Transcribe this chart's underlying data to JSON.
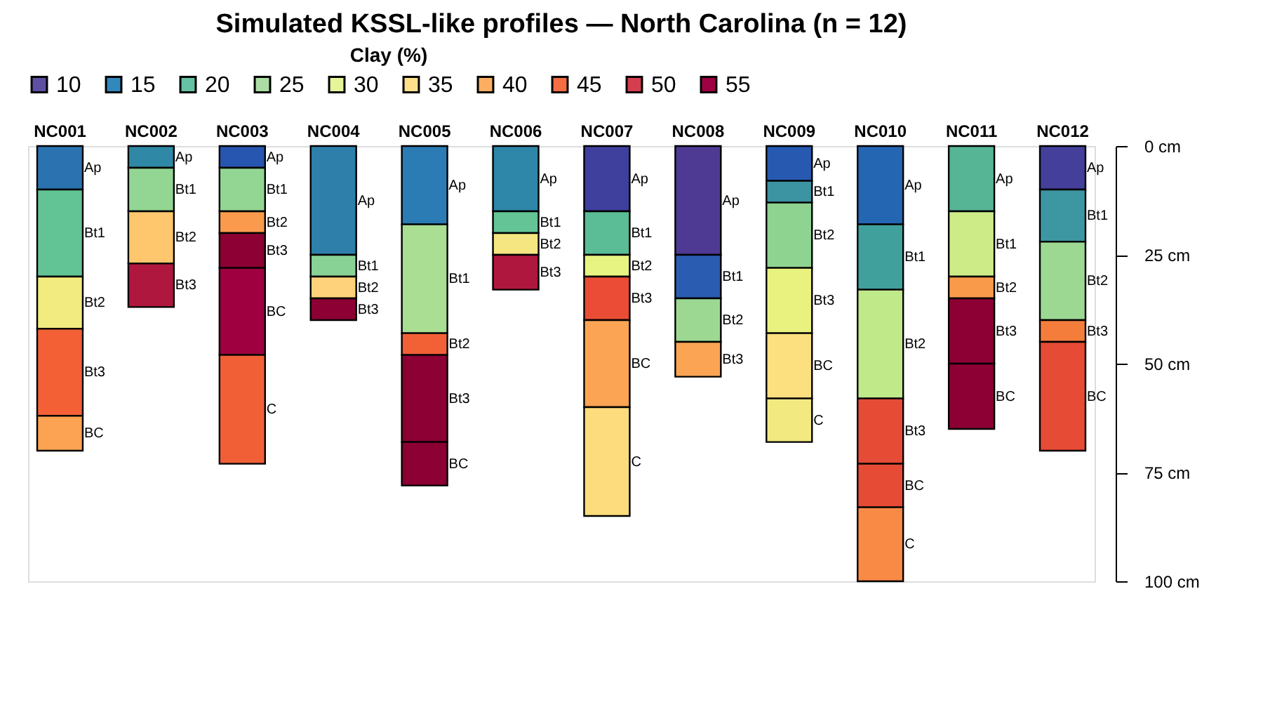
{
  "chart_data": {
    "type": "bar",
    "stacked": true,
    "title": "Simulated KSSL-like profiles — North Carolina (n = 12)",
    "legend_title": "Clay (%)",
    "legend": "top",
    "categories": [
      "NC001",
      "NC002",
      "NC003",
      "NC004",
      "NC005",
      "NC006",
      "NC007",
      "NC008",
      "NC009",
      "NC010",
      "NC011",
      "NC012"
    ],
    "ylim": [
      100,
      0
    ],
    "yticks": [
      {
        "value": 0,
        "label": "0 cm"
      },
      {
        "value": 25,
        "label": "25 cm"
      },
      {
        "value": 50,
        "label": "50 cm"
      },
      {
        "value": 75,
        "label": "75 cm"
      },
      {
        "value": 100,
        "label": "100 cm"
      }
    ],
    "series": [
      {
        "values": [
          10,
          5,
          5,
          25,
          18,
          15,
          15,
          25,
          8,
          18,
          15,
          10
        ],
        "value_labels": [
          "Ap",
          "Ap",
          "Ap",
          "Ap",
          "Ap",
          "Ap",
          "Ap",
          "Ap",
          "Ap",
          "Ap",
          "Ap",
          "Ap"
        ],
        "colors": [
          "#2b73b0",
          "#2f88a6",
          "#2756b0",
          "#2e80ab",
          "#2b7bb5",
          "#2e86a8",
          "#3f3f9e",
          "#4e3a93",
          "#2759b0",
          "#2566b2",
          "#55b595",
          "#433f9b"
        ]
      },
      {
        "values": [
          20,
          10,
          10,
          5,
          25,
          5,
          10,
          10,
          5,
          15,
          15,
          12
        ],
        "value_labels": [
          "Bt1",
          "Bt1",
          "Bt1",
          "Bt1",
          "Bt1",
          "Bt1",
          "Bt1",
          "Bt1",
          "Bt1",
          "Bt1",
          "Bt1",
          "Bt1"
        ],
        "colors": [
          "#62c495",
          "#93d592",
          "#93d592",
          "#88d296",
          "#a9de93",
          "#64c495",
          "#5abd96",
          "#2a5db1",
          "#3c93a2",
          "#40a19c",
          "#cdec88",
          "#3c97a2"
        ]
      },
      {
        "values": [
          12,
          12,
          5,
          5,
          5,
          5,
          5,
          10,
          15,
          25,
          5,
          18
        ],
        "value_labels": [
          "Bt2",
          "Bt2",
          "Bt2",
          "Bt2",
          "Bt2",
          "Bt2",
          "Bt2",
          "Bt2",
          "Bt2",
          "Bt2",
          "Bt2",
          "Bt2"
        ],
        "colors": [
          "#f2ec80",
          "#fec76e",
          "#fa9a4c",
          "#fed27a",
          "#f26036",
          "#f6e681",
          "#e8f482",
          "#9dd893",
          "#8fd390",
          "#c0e98a",
          "#f99a4b",
          "#9dd893"
        ]
      },
      {
        "values": [
          20,
          10,
          8,
          5,
          20,
          8,
          10,
          8,
          15,
          15,
          15,
          5
        ],
        "value_labels": [
          "Bt3",
          "Bt3",
          "Bt3",
          "Bt3",
          "Bt3",
          "Bt3",
          "Bt3",
          "Bt3",
          "Bt3",
          "Bt3",
          "Bt3",
          "Bt3"
        ],
        "colors": [
          "#f46036",
          "#b0173e",
          "#8c0033",
          "#8c0033",
          "#8c0033",
          "#b0173e",
          "#ea4c35",
          "#fba554",
          "#e9f27e",
          "#e64b35",
          "#8c0033",
          "#f57d3c"
        ]
      },
      {
        "values": [
          8,
          null,
          20,
          null,
          10,
          null,
          20,
          null,
          15,
          10,
          15,
          25
        ],
        "value_labels": [
          "BC",
          null,
          "BC",
          null,
          "BC",
          null,
          "BC",
          null,
          "BC",
          "BC",
          "BC",
          "BC"
        ],
        "colors": [
          "#fba352",
          null,
          "#9e0040",
          null,
          "#8c0033",
          null,
          "#fba554",
          null,
          "#fcdf7e",
          "#e64b35",
          "#8c0033",
          "#e64b35"
        ]
      },
      {
        "values": [
          null,
          null,
          25,
          null,
          null,
          null,
          25,
          null,
          10,
          17,
          null,
          null
        ],
        "value_labels": [
          null,
          null,
          "C",
          null,
          null,
          null,
          "C",
          null,
          "C",
          "C",
          null,
          null
        ],
        "colors": [
          null,
          null,
          "#f15f37",
          null,
          null,
          null,
          "#fcdc7c",
          null,
          "#f2ea80",
          "#f98a45",
          null,
          null
        ]
      },
      {
        "name": "10",
        "color": "#5e4fa2",
        "values": [
          null,
          null,
          null,
          null,
          null,
          null,
          null,
          null,
          null,
          null,
          null,
          null
        ]
      },
      {
        "name": "15",
        "color": "#3288bd",
        "values": [
          null,
          null,
          null,
          null,
          null,
          null,
          null,
          null,
          null,
          null,
          null,
          null
        ]
      },
      {
        "name": "20",
        "color": "#66c2a5",
        "values": [
          null,
          null,
          null,
          null,
          null,
          null,
          null,
          null,
          null,
          null,
          null,
          null
        ]
      },
      {
        "name": "25",
        "color": "#abdda4",
        "values": [
          null,
          null,
          null,
          null,
          null,
          null,
          null,
          null,
          null,
          null,
          null,
          null
        ]
      },
      {
        "name": "30",
        "color": "#e6f598",
        "values": [
          null,
          null,
          null,
          null,
          null,
          null,
          null,
          null,
          null,
          null,
          null,
          null
        ]
      },
      {
        "name": "35",
        "color": "#fee08b",
        "values": [
          null,
          null,
          null,
          null,
          null,
          null,
          null,
          null,
          null,
          null,
          null,
          null
        ]
      },
      {
        "name": "40",
        "color": "#fdae61",
        "values": [
          null,
          null,
          null,
          null,
          null,
          null,
          null,
          null,
          null,
          null,
          null,
          null
        ]
      },
      {
        "name": "45",
        "color": "#f46d43",
        "values": [
          null,
          null,
          null,
          null,
          null,
          null,
          null,
          null,
          null,
          null,
          null,
          null
        ]
      },
      {
        "name": "50",
        "color": "#d53e4f",
        "values": [
          null,
          null,
          null,
          null,
          null,
          null,
          null,
          null,
          null,
          null,
          null,
          null
        ]
      },
      {
        "name": "55",
        "color": "#9e0142",
        "values": [
          null,
          null,
          null,
          null,
          null,
          null,
          null,
          null,
          null,
          null,
          null,
          null
        ]
      }
    ]
  }
}
